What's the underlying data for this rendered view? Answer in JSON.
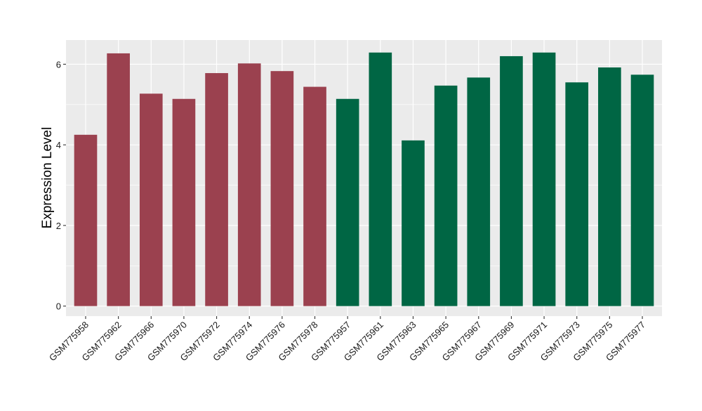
{
  "chart_data": {
    "type": "bar",
    "title": "",
    "xlabel": "",
    "ylabel": "Expression Level",
    "ylim": [
      -0.25,
      6.6
    ],
    "yticks": [
      0,
      2,
      4,
      6
    ],
    "grid": true,
    "colors": {
      "panel_background": "#ebebeb",
      "grid_major": "#ffffff",
      "axis_text": "#1a1a1a",
      "tick": "#333333"
    },
    "categories": [
      "GSM775958",
      "GSM775962",
      "GSM775966",
      "GSM775970",
      "GSM775972",
      "GSM775974",
      "GSM775976",
      "GSM775978",
      "GSM775957",
      "GSM775961",
      "GSM775963",
      "GSM775965",
      "GSM775967",
      "GSM775969",
      "GSM775971",
      "GSM775973",
      "GSM775975",
      "GSM775977"
    ],
    "values": [
      4.25,
      6.27,
      5.27,
      5.14,
      5.78,
      6.02,
      5.83,
      5.44,
      5.14,
      6.29,
      4.11,
      5.47,
      5.67,
      6.2,
      6.29,
      5.55,
      5.92,
      5.74
    ],
    "bar_colors": [
      "#9b414f",
      "#9b414f",
      "#9b414f",
      "#9b414f",
      "#9b414f",
      "#9b414f",
      "#9b414f",
      "#9b414f",
      "#006644",
      "#006644",
      "#006644",
      "#006644",
      "#006644",
      "#006644",
      "#006644",
      "#006644",
      "#006644",
      "#006644"
    ]
  }
}
